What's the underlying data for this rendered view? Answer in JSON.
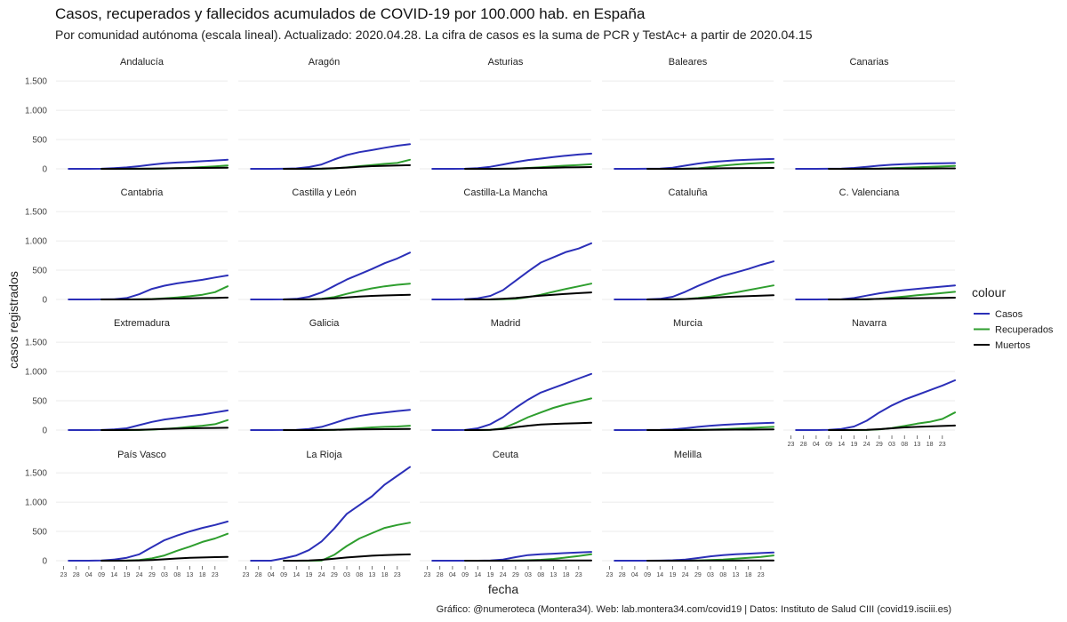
{
  "title": "Casos, recuperados y fallecidos acumulados de COVID-19 por 100.000 hab. en España",
  "subtitle": "Por comunidad autónoma (escala lineal). Actualizado: 2020.04.28. La cifra de casos es la suma de PCR y TestAc+ a partir de 2020.04.15",
  "caption": "Gráfico: @numeroteca (Montera34). Web: lab.montera34.com/covid19 | Datos: Instituto de Salud CIII (covid19.isciii.es)",
  "colors": {
    "Casos": "#2b2fb8",
    "Recuperados": "#2e9e2e",
    "Muertos": "#000000"
  },
  "chart_data": {
    "type": "line",
    "facets_layout": "wrap, 5 columns",
    "xlabel": "fecha",
    "ylabel": "casos registrados",
    "ylim": [
      0,
      1700
    ],
    "y_ticks": [
      0,
      500,
      1000,
      1500
    ],
    "y_tick_labels": [
      "0",
      "500",
      "1.000",
      "1.500"
    ],
    "x_ticks": [
      "2020-02-23",
      "2020-02-28",
      "2020-03-04",
      "2020-03-09",
      "2020-03-14",
      "2020-03-19",
      "2020-03-24",
      "2020-03-29",
      "2020-04-03",
      "2020-04-08",
      "2020-04-13",
      "2020-04-18",
      "2020-04-23"
    ],
    "x_tick_labels": [
      "23",
      "28",
      "04",
      "09",
      "14",
      "19",
      "24",
      "29",
      "03",
      "08",
      "13",
      "18",
      "23"
    ],
    "x_range": [
      "2020-02-20",
      "2020-04-28"
    ],
    "legend": {
      "title": "colour",
      "position": "right",
      "entries": [
        "Casos",
        "Recuperados",
        "Muertos"
      ]
    },
    "sample_dates": [
      "2020-02-25",
      "2020-03-04",
      "2020-03-09",
      "2020-03-14",
      "2020-03-19",
      "2020-03-24",
      "2020-03-29",
      "2020-04-03",
      "2020-04-08",
      "2020-04-13",
      "2020-04-18",
      "2020-04-23",
      "2020-04-28"
    ],
    "facets": [
      {
        "name": "Andalucía",
        "series": {
          "Casos": [
            0,
            0,
            2,
            10,
            25,
            45,
            72,
            95,
            108,
            118,
            130,
            142,
            155
          ],
          "Recuperados": [
            null,
            null,
            0,
            0,
            0,
            1,
            2,
            5,
            10,
            18,
            30,
            42,
            58
          ],
          "Muertos": [
            null,
            null,
            0,
            0,
            1,
            2,
            4,
            7,
            10,
            13,
            15,
            17,
            19
          ]
        }
      },
      {
        "name": "Aragón",
        "series": {
          "Casos": [
            0,
            0,
            2,
            8,
            30,
            75,
            160,
            235,
            285,
            320,
            360,
            395,
            420
          ],
          "Recuperados": [
            null,
            null,
            0,
            0,
            0,
            2,
            8,
            25,
            45,
            65,
            85,
            100,
            155
          ],
          "Muertos": [
            null,
            null,
            0,
            0,
            1,
            3,
            10,
            22,
            35,
            45,
            52,
            58,
            62
          ]
        }
      },
      {
        "name": "Asturias",
        "series": {
          "Casos": [
            0,
            0,
            2,
            10,
            35,
            75,
            115,
            150,
            175,
            200,
            225,
            245,
            260
          ],
          "Recuperados": [
            null,
            null,
            0,
            0,
            0,
            1,
            5,
            15,
            28,
            42,
            55,
            65,
            78
          ],
          "Muertos": [
            null,
            null,
            0,
            0,
            0,
            2,
            5,
            10,
            15,
            20,
            25,
            28,
            30
          ]
        }
      },
      {
        "name": "Baleares",
        "series": {
          "Casos": [
            0,
            0,
            2,
            5,
            20,
            55,
            90,
            115,
            130,
            145,
            155,
            162,
            168
          ],
          "Recuperados": [
            null,
            null,
            0,
            0,
            0,
            2,
            8,
            30,
            55,
            75,
            90,
            100,
            110
          ],
          "Muertos": [
            null,
            null,
            0,
            0,
            0,
            1,
            3,
            6,
            9,
            11,
            13,
            14,
            15
          ]
        }
      },
      {
        "name": "Canarias",
        "series": {
          "Casos": [
            0,
            0,
            2,
            5,
            15,
            35,
            55,
            70,
            80,
            88,
            92,
            95,
            98
          ],
          "Recuperados": [
            null,
            null,
            0,
            0,
            0,
            1,
            3,
            10,
            18,
            28,
            35,
            42,
            50
          ],
          "Muertos": [
            null,
            null,
            0,
            0,
            0,
            1,
            2,
            3,
            4,
            5,
            6,
            7,
            7
          ]
        }
      },
      {
        "name": "Cantabria",
        "series": {
          "Casos": [
            0,
            0,
            2,
            5,
            25,
            90,
            180,
            235,
            275,
            305,
            335,
            375,
            410
          ],
          "Recuperados": [
            null,
            null,
            0,
            0,
            0,
            2,
            8,
            20,
            35,
            55,
            80,
            125,
            225
          ],
          "Muertos": [
            null,
            null,
            0,
            0,
            0,
            2,
            5,
            10,
            15,
            20,
            25,
            28,
            32
          ]
        }
      },
      {
        "name": "Castilla y León",
        "series": {
          "Casos": [
            0,
            0,
            2,
            10,
            45,
            120,
            230,
            340,
            430,
            520,
            620,
            700,
            800
          ],
          "Recuperados": [
            null,
            null,
            0,
            0,
            0,
            10,
            40,
            95,
            145,
            190,
            225,
            250,
            270
          ],
          "Muertos": [
            null,
            null,
            0,
            0,
            2,
            8,
            20,
            35,
            48,
            60,
            68,
            75,
            80
          ]
        }
      },
      {
        "name": "Castilla-La Mancha",
        "series": {
          "Casos": [
            0,
            0,
            5,
            20,
            60,
            160,
            320,
            480,
            630,
            720,
            810,
            870,
            960
          ],
          "Recuperados": [
            null,
            null,
            0,
            0,
            0,
            3,
            10,
            40,
            80,
            130,
            180,
            225,
            270
          ],
          "Muertos": [
            null,
            null,
            0,
            0,
            2,
            10,
            25,
            45,
            65,
            80,
            95,
            108,
            120
          ]
        }
      },
      {
        "name": "Cataluña",
        "series": {
          "Casos": [
            0,
            0,
            2,
            10,
            45,
            130,
            230,
            320,
            400,
            460,
            520,
            590,
            650
          ],
          "Recuperados": [
            null,
            null,
            0,
            0,
            0,
            8,
            25,
            50,
            85,
            120,
            160,
            200,
            240
          ],
          "Muertos": [
            null,
            null,
            0,
            0,
            1,
            6,
            15,
            28,
            40,
            50,
            58,
            65,
            72
          ]
        }
      },
      {
        "name": "C. Valenciana",
        "series": {
          "Casos": [
            0,
            0,
            2,
            5,
            25,
            65,
            105,
            135,
            160,
            180,
            200,
            220,
            240
          ],
          "Recuperados": [
            null,
            null,
            0,
            0,
            0,
            2,
            10,
            30,
            50,
            72,
            90,
            110,
            130
          ],
          "Muertos": [
            null,
            null,
            0,
            0,
            1,
            4,
            9,
            14,
            18,
            22,
            25,
            28,
            31
          ]
        }
      },
      {
        "name": "Extremadura",
        "series": {
          "Casos": [
            0,
            0,
            2,
            10,
            30,
            85,
            140,
            180,
            210,
            240,
            265,
            300,
            335
          ],
          "Recuperados": [
            null,
            null,
            0,
            0,
            0,
            2,
            8,
            20,
            35,
            55,
            75,
            100,
            170
          ],
          "Muertos": [
            null,
            null,
            0,
            0,
            1,
            4,
            10,
            18,
            25,
            30,
            34,
            37,
            40
          ]
        }
      },
      {
        "name": "Galicia",
        "series": {
          "Casos": [
            0,
            0,
            2,
            5,
            20,
            55,
            120,
            190,
            240,
            275,
            300,
            325,
            345
          ],
          "Recuperados": [
            null,
            null,
            0,
            0,
            0,
            1,
            5,
            15,
            30,
            45,
            55,
            60,
            75
          ],
          "Muertos": [
            null,
            null,
            0,
            0,
            0,
            1,
            3,
            7,
            10,
            13,
            15,
            17,
            19
          ]
        }
      },
      {
        "name": "Madrid",
        "series": {
          "Casos": [
            0,
            0,
            2,
            30,
            100,
            220,
            380,
            520,
            640,
            720,
            800,
            880,
            960
          ],
          "Recuperados": [
            null,
            null,
            0,
            0,
            5,
            30,
            120,
            220,
            300,
            380,
            440,
            490,
            540
          ],
          "Muertos": [
            null,
            null,
            0,
            0,
            5,
            20,
            50,
            75,
            95,
            105,
            112,
            118,
            124
          ]
        }
      },
      {
        "name": "Murcia",
        "series": {
          "Casos": [
            0,
            0,
            2,
            3,
            10,
            30,
            55,
            75,
            90,
            100,
            110,
            118,
            125
          ],
          "Recuperados": [
            null,
            null,
            0,
            0,
            0,
            1,
            3,
            8,
            15,
            25,
            35,
            45,
            55
          ],
          "Muertos": [
            null,
            null,
            0,
            0,
            0,
            1,
            2,
            4,
            6,
            7,
            8,
            9,
            10
          ]
        }
      },
      {
        "name": "Navarra",
        "series": {
          "Casos": [
            0,
            0,
            5,
            20,
            60,
            160,
            300,
            420,
            520,
            600,
            680,
            760,
            850
          ],
          "Recuperados": [
            null,
            null,
            0,
            0,
            0,
            2,
            10,
            35,
            70,
            110,
            140,
            190,
            300
          ],
          "Muertos": [
            null,
            null,
            0,
            0,
            1,
            5,
            15,
            30,
            45,
            55,
            62,
            70,
            78
          ]
        }
      },
      {
        "name": "País Vasco",
        "series": {
          "Casos": [
            0,
            0,
            5,
            20,
            50,
            110,
            230,
            350,
            430,
            500,
            560,
            610,
            670
          ],
          "Recuperados": [
            null,
            null,
            0,
            0,
            2,
            10,
            40,
            90,
            170,
            240,
            320,
            380,
            460
          ],
          "Muertos": [
            null,
            null,
            0,
            0,
            1,
            5,
            12,
            25,
            38,
            48,
            55,
            60,
            65
          ]
        }
      },
      {
        "name": "La Rioja",
        "series": {
          "Casos": [
            0,
            0,
            40,
            90,
            180,
            330,
            550,
            800,
            950,
            1100,
            1300,
            1450,
            1600
          ],
          "Recuperados": [
            null,
            null,
            0,
            0,
            0,
            2,
            100,
            250,
            380,
            470,
            560,
            610,
            650
          ],
          "Muertos": [
            null,
            null,
            0,
            0,
            5,
            15,
            35,
            55,
            70,
            85,
            95,
            102,
            108
          ]
        }
      },
      {
        "name": "Ceuta",
        "series": {
          "Casos": [
            0,
            0,
            0,
            0,
            5,
            20,
            60,
            95,
            110,
            120,
            130,
            140,
            150
          ],
          "Recuperados": [
            null,
            null,
            0,
            0,
            0,
            0,
            2,
            8,
            15,
            30,
            55,
            80,
            110
          ],
          "Muertos": [
            null,
            null,
            0,
            0,
            0,
            0,
            1,
            2,
            3,
            4,
            4,
            5,
            5
          ]
        }
      },
      {
        "name": "Melilla",
        "series": {
          "Casos": [
            0,
            0,
            0,
            2,
            8,
            20,
            45,
            75,
            95,
            110,
            120,
            130,
            140
          ],
          "Recuperados": [
            null,
            null,
            0,
            0,
            0,
            0,
            3,
            10,
            20,
            35,
            50,
            65,
            90
          ],
          "Muertos": [
            null,
            null,
            0,
            0,
            0,
            0,
            1,
            2,
            2,
            2,
            3,
            3,
            3
          ]
        }
      }
    ]
  }
}
